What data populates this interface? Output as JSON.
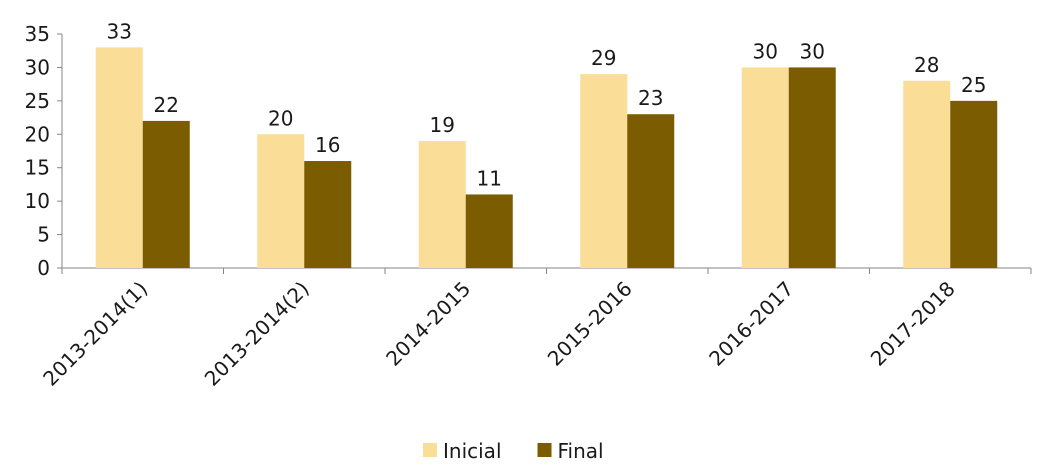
{
  "chart_data": {
    "type": "bar",
    "categories": [
      "2013-2014(1)",
      "2013-2014(2)",
      "2014-2015",
      "2015-2016",
      "2016-2017",
      "2017-2018"
    ],
    "series": [
      {
        "name": "Inicial",
        "values": [
          33,
          20,
          19,
          29,
          30,
          28
        ],
        "color": "#FADD96"
      },
      {
        "name": "Final",
        "values": [
          22,
          16,
          11,
          23,
          30,
          25
        ],
        "color": "#7B5C00"
      }
    ],
    "title": "",
    "xlabel": "",
    "ylabel": "",
    "ylim": [
      0,
      35
    ],
    "yticks": [
      0,
      5,
      10,
      15,
      20,
      25,
      30,
      35
    ],
    "grid": false,
    "legend_position": "bottom"
  }
}
